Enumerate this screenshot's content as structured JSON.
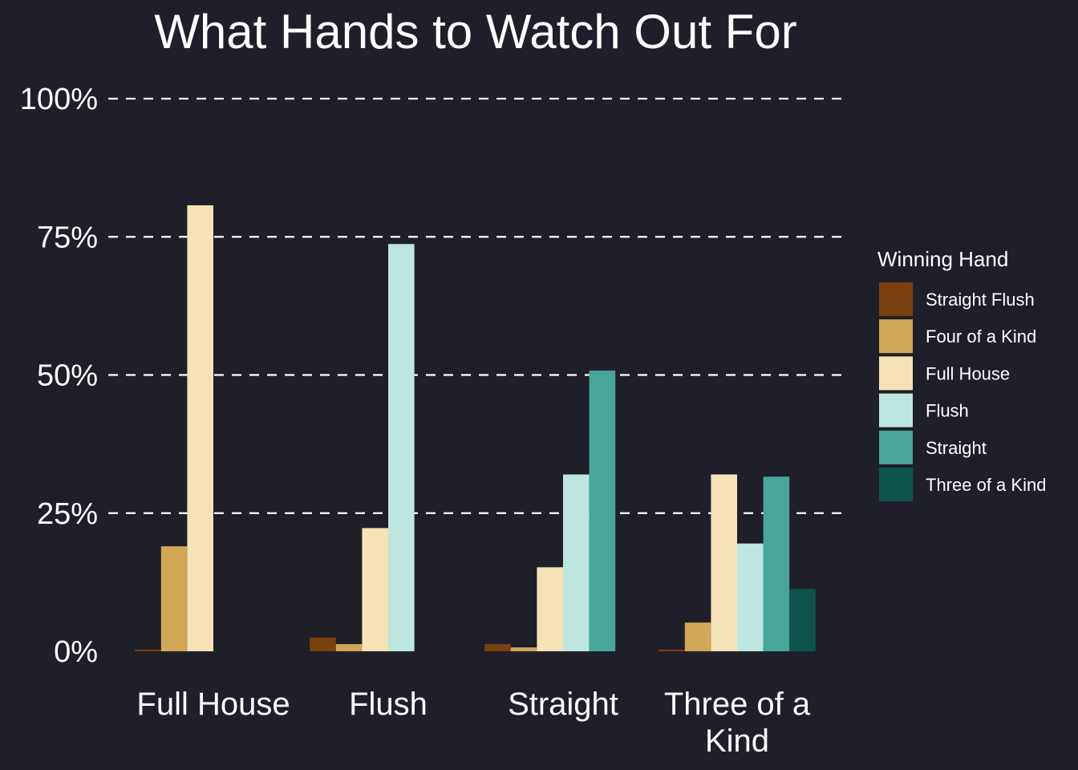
{
  "chart_data": {
    "type": "bar",
    "title": "What Hands to Watch Out For",
    "xlabel": "",
    "ylabel": "",
    "ylim": [
      0,
      100
    ],
    "yticks": [
      "0%",
      "25%",
      "50%",
      "75%",
      "100%"
    ],
    "ytick_values": [
      0,
      25,
      50,
      75,
      100
    ],
    "grid": "horizontal dashed",
    "categories": [
      "Full House",
      "Flush",
      "Straight",
      "Three of a Kind"
    ],
    "category_lines": [
      [
        "Full House"
      ],
      [
        "Flush"
      ],
      [
        "Straight"
      ],
      [
        "Three of a",
        "Kind"
      ]
    ],
    "legend": {
      "title": "Winning Hand",
      "placement": "right"
    },
    "series": [
      {
        "name": "Straight Flush",
        "color": "#7a400f",
        "values": [
          0.3,
          2.5,
          1.3,
          0.3
        ]
      },
      {
        "name": "Four of a Kind",
        "color": "#cfa755",
        "values": [
          19,
          1.3,
          0.7,
          5.2
        ]
      },
      {
        "name": "Full House",
        "color": "#f5e2b6",
        "values": [
          80.7,
          22.3,
          15.2,
          32
        ]
      },
      {
        "name": "Flush",
        "color": "#bde6e0",
        "values": [
          null,
          73.7,
          32,
          19.5
        ]
      },
      {
        "name": "Straight",
        "color": "#48a599",
        "values": [
          null,
          null,
          50.8,
          31.6
        ]
      },
      {
        "name": "Three of a Kind",
        "color": "#0d554b",
        "values": [
          null,
          null,
          null,
          11.3
        ]
      }
    ]
  }
}
